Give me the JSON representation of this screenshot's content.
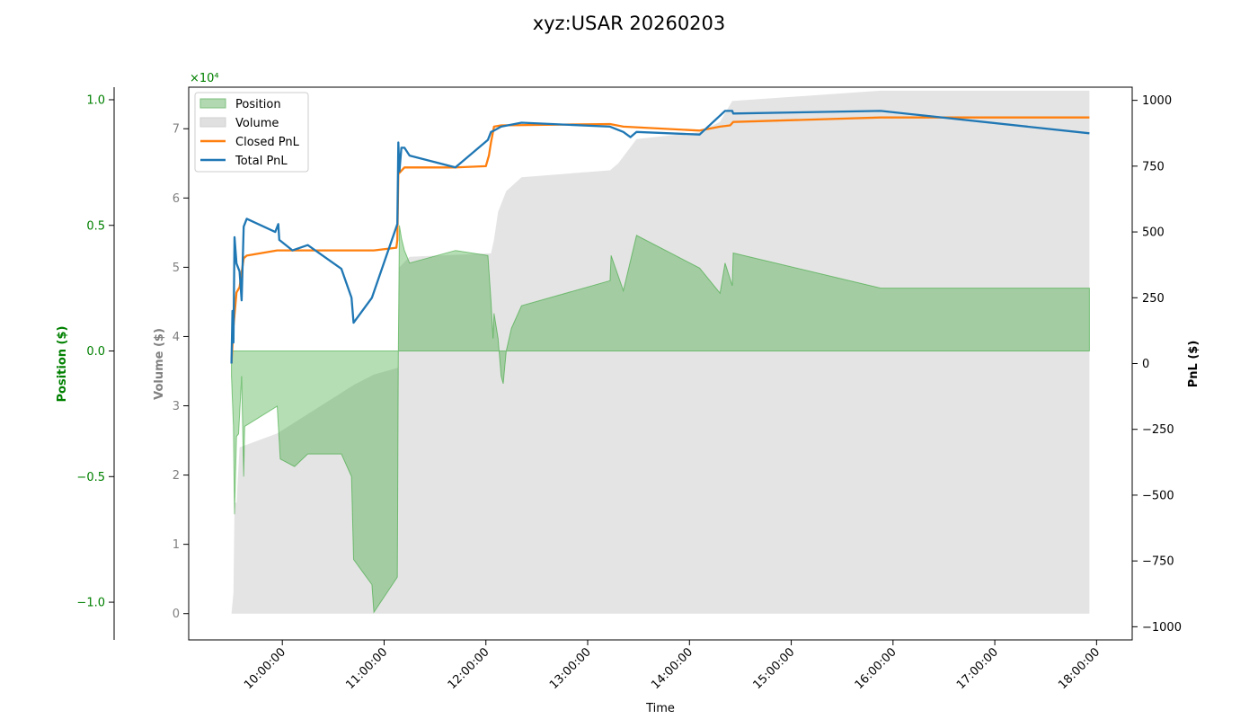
{
  "chart_data": {
    "type": "line",
    "title": "xyz:USAR 20260203",
    "xlabel": "Time",
    "x_ticks": [
      "10:00:00",
      "11:00:00",
      "12:00:00",
      "13:00:00",
      "14:00:00",
      "15:00:00",
      "16:00:00",
      "17:00:00",
      "18:00:00"
    ],
    "position_axis": {
      "label": "Position ($)",
      "multiplier": "×10⁴",
      "ticks": [
        "−1.0",
        "−0.5",
        "0.0",
        "0.5",
        "1.0"
      ],
      "tick_values": [
        -10000,
        -5000,
        0,
        5000,
        10000
      ],
      "ylim": [
        -11500,
        10500
      ],
      "color": "#008000"
    },
    "volume_axis": {
      "label": "Volume ($)",
      "ticks": [
        "0",
        "1",
        "2",
        "3",
        "4",
        "5",
        "6",
        "7"
      ],
      "tick_values": [
        0,
        1,
        2,
        3,
        4,
        5,
        6,
        7
      ],
      "ylim": [
        -0.38,
        7.6
      ],
      "color": "#808080"
    },
    "pnl_axis": {
      "label": "PnL ($)",
      "ticks": [
        "−1000",
        "−750",
        "−500",
        "−250",
        "0",
        "250",
        "500",
        "750",
        "1000"
      ],
      "tick_values": [
        -1000,
        -750,
        -500,
        -250,
        0,
        250,
        500,
        750,
        1000
      ],
      "ylim": [
        -1050,
        1050
      ],
      "color": "#000000"
    },
    "legend": {
      "placement": "top-left",
      "items": [
        {
          "label": "Position",
          "kind": "patch",
          "color": "#b2d8b2"
        },
        {
          "label": "Volume",
          "kind": "patch",
          "color": "#e0e0e0"
        },
        {
          "label": "Closed PnL",
          "kind": "line",
          "color": "#ff7f0e"
        },
        {
          "label": "Total PnL",
          "kind": "line",
          "color": "#1f77b4"
        }
      ]
    },
    "series": [
      {
        "name": "Position",
        "color": "#2ca02c",
        "points": [
          [
            9.5,
            -1000
          ],
          [
            9.52,
            -3000
          ],
          [
            9.53,
            -6500
          ],
          [
            9.55,
            -3400
          ],
          [
            9.57,
            -3300
          ],
          [
            9.6,
            -1000
          ],
          [
            9.62,
            -5000
          ],
          [
            9.63,
            -3000
          ],
          [
            9.95,
            -2200
          ],
          [
            9.98,
            -4300
          ],
          [
            10.12,
            -4600
          ],
          [
            10.25,
            -4100
          ],
          [
            10.58,
            -4100
          ],
          [
            10.68,
            -5000
          ],
          [
            10.7,
            -8300
          ],
          [
            10.88,
            -9300
          ],
          [
            10.9,
            -10400
          ],
          [
            11.13,
            -9000
          ],
          [
            11.14,
            0
          ],
          [
            11.15,
            5000
          ],
          [
            11.17,
            4500
          ],
          [
            11.2,
            4000
          ],
          [
            11.25,
            3500
          ],
          [
            11.7,
            4000
          ],
          [
            12.02,
            3800
          ],
          [
            12.05,
            2000
          ],
          [
            12.07,
            500
          ],
          [
            12.08,
            1500
          ],
          [
            12.12,
            500
          ],
          [
            12.15,
            -1000
          ],
          [
            12.17,
            -1300
          ],
          [
            12.2,
            0
          ],
          [
            12.25,
            900
          ],
          [
            12.35,
            1800
          ],
          [
            13.22,
            2800
          ],
          [
            13.23,
            3800
          ],
          [
            13.35,
            2400
          ],
          [
            13.48,
            4600
          ],
          [
            14.1,
            3300
          ],
          [
            14.3,
            2300
          ],
          [
            14.35,
            3500
          ],
          [
            14.42,
            2600
          ],
          [
            14.43,
            3900
          ],
          [
            15.88,
            2500
          ],
          [
            17.93,
            2500
          ]
        ]
      },
      {
        "name": "Volume",
        "color": "#d9d9d9",
        "points": [
          [
            9.5,
            0
          ],
          [
            9.52,
            0.3
          ],
          [
            9.53,
            1.6
          ],
          [
            9.55,
            1.6
          ],
          [
            9.58,
            2.4
          ],
          [
            9.95,
            2.6
          ],
          [
            10.7,
            3.3
          ],
          [
            10.9,
            3.45
          ],
          [
            11.14,
            3.55
          ],
          [
            11.15,
            5.0
          ],
          [
            11.25,
            5.15
          ],
          [
            12.0,
            5.2
          ],
          [
            12.05,
            5.2
          ],
          [
            12.08,
            5.4
          ],
          [
            12.12,
            5.8
          ],
          [
            12.2,
            6.1
          ],
          [
            12.35,
            6.3
          ],
          [
            13.22,
            6.4
          ],
          [
            13.3,
            6.5
          ],
          [
            13.48,
            6.85
          ],
          [
            14.1,
            6.95
          ],
          [
            14.3,
            7.1
          ],
          [
            14.42,
            7.4
          ],
          [
            15.88,
            7.55
          ],
          [
            17.93,
            7.55
          ]
        ]
      },
      {
        "name": "Closed PnL",
        "color": "#ff7f0e",
        "points": [
          [
            9.5,
            0
          ],
          [
            9.52,
            140
          ],
          [
            9.55,
            270
          ],
          [
            9.58,
            290
          ],
          [
            9.62,
            400
          ],
          [
            9.65,
            410
          ],
          [
            9.95,
            430
          ],
          [
            10.5,
            430
          ],
          [
            10.9,
            430
          ],
          [
            11.12,
            440
          ],
          [
            11.13,
            470
          ],
          [
            11.14,
            720
          ],
          [
            11.2,
            745
          ],
          [
            11.7,
            745
          ],
          [
            12.0,
            750
          ],
          [
            12.03,
            790
          ],
          [
            12.05,
            840
          ],
          [
            12.08,
            900
          ],
          [
            12.15,
            905
          ],
          [
            13.22,
            910
          ],
          [
            13.35,
            900
          ],
          [
            14.1,
            885
          ],
          [
            14.3,
            900
          ],
          [
            14.4,
            905
          ],
          [
            14.43,
            918
          ],
          [
            15.88,
            935
          ],
          [
            17.93,
            935
          ]
        ]
      },
      {
        "name": "Total PnL",
        "color": "#1f77b4",
        "points": [
          [
            9.5,
            0
          ],
          [
            9.51,
            200
          ],
          [
            9.52,
            80
          ],
          [
            9.53,
            480
          ],
          [
            9.55,
            380
          ],
          [
            9.58,
            350
          ],
          [
            9.6,
            240
          ],
          [
            9.62,
            520
          ],
          [
            9.65,
            550
          ],
          [
            9.93,
            500
          ],
          [
            9.96,
            530
          ],
          [
            9.97,
            470
          ],
          [
            10.1,
            430
          ],
          [
            10.25,
            450
          ],
          [
            10.58,
            360
          ],
          [
            10.68,
            250
          ],
          [
            10.7,
            155
          ],
          [
            10.88,
            250
          ],
          [
            11.13,
            530
          ],
          [
            11.14,
            840
          ],
          [
            11.15,
            730
          ],
          [
            11.17,
            820
          ],
          [
            11.2,
            820
          ],
          [
            11.25,
            790
          ],
          [
            11.7,
            745
          ],
          [
            12.02,
            850
          ],
          [
            12.05,
            880
          ],
          [
            12.08,
            885
          ],
          [
            12.15,
            900
          ],
          [
            12.35,
            915
          ],
          [
            13.22,
            900
          ],
          [
            13.35,
            880
          ],
          [
            13.42,
            860
          ],
          [
            13.48,
            880
          ],
          [
            14.1,
            870
          ],
          [
            14.35,
            960
          ],
          [
            14.42,
            960
          ],
          [
            14.43,
            950
          ],
          [
            15.88,
            960
          ],
          [
            17.93,
            875
          ]
        ]
      }
    ],
    "x_range": [
      9.08,
      18.35
    ]
  }
}
